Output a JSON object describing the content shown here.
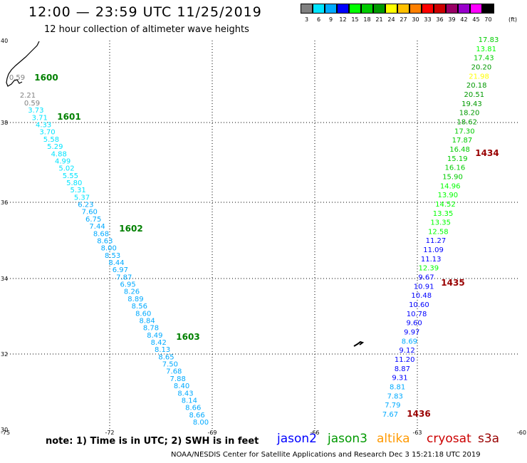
{
  "title": "12:00 — 23:59 UTC 11/25/2019",
  "subtitle": "12 hour collection of altimeter wave heights",
  "legend": {
    "colors": [
      "#808080",
      "#00e4ff",
      "#00aaff",
      "#0000ff",
      "#00ff00",
      "#00cc00",
      "#009900",
      "#ffff00",
      "#ffc000",
      "#ff8000",
      "#ff0000",
      "#cc0000",
      "#990066",
      "#9900cc",
      "#ff00ff",
      "#000000"
    ],
    "labels": [
      "3",
      "6",
      "9",
      "12",
      "15",
      "18",
      "21",
      "24",
      "27",
      "30",
      "33",
      "36",
      "39",
      "42",
      "45",
      "70"
    ],
    "unit": "(ft)"
  },
  "map": {
    "x_ticks": [
      "-75",
      "-72",
      "-69",
      "-66",
      "-63",
      "-60"
    ],
    "y_ticks": [
      "40",
      "38",
      "36",
      "34",
      "32",
      "30"
    ],
    "coast_color": "#000000",
    "grid_color": "#000000"
  },
  "tracks": [
    {
      "id": "west",
      "values": [
        "0.59",
        "2.21",
        "0.59",
        "3.73",
        "3.71",
        "4.33",
        "3.70",
        "5.58",
        "5.29",
        "4.88",
        "4.99",
        "5.02",
        "5.55",
        "5.80",
        "5.31",
        "5.37",
        "6.23",
        "7.60",
        "6.75",
        "7.44",
        "8.68",
        "8.63",
        "8.00",
        "8.53",
        "8.44",
        "6.97",
        "7.87",
        "6.95",
        "8.26",
        "8.89",
        "8.56",
        "8.60",
        "8.84",
        "8.78",
        "8.49",
        "8.42",
        "8.13",
        "8.65",
        "7.50",
        "7.68",
        "7.88",
        "8.40",
        "8.43",
        "8.14",
        "8.66",
        "8.66",
        "8.00"
      ],
      "colors": [
        "#808080",
        "#808080",
        "#808080",
        "#00e4ff",
        "#00e4ff",
        "#00e4ff",
        "#00e4ff",
        "#00e4ff",
        "#00e4ff",
        "#00e4ff",
        "#00e4ff",
        "#00e4ff",
        "#00e4ff",
        "#00e4ff",
        "#00e4ff",
        "#00e4ff",
        "#00aaff",
        "#00aaff",
        "#00aaff",
        "#00aaff",
        "#00aaff",
        "#00aaff",
        "#00aaff",
        "#00aaff",
        "#00aaff",
        "#00aaff",
        "#00aaff",
        "#00aaff",
        "#00aaff",
        "#00aaff",
        "#00aaff",
        "#00aaff",
        "#00aaff",
        "#00aaff",
        "#00aaff",
        "#00aaff",
        "#00aaff",
        "#00aaff",
        "#00aaff",
        "#00aaff",
        "#00aaff",
        "#00aaff",
        "#00aaff",
        "#00aaff",
        "#00aaff",
        "#00aaff",
        "#00aaff"
      ],
      "time_labels": [
        {
          "text": "1600",
          "color": "#008000"
        },
        {
          "text": "1601",
          "color": "#008000"
        },
        {
          "text": "1602",
          "color": "#008000"
        },
        {
          "text": "1603",
          "color": "#008000"
        }
      ]
    },
    {
      "id": "east",
      "values": [
        "17.83",
        "13.81",
        "17.43",
        "20.20",
        "21.98",
        "20.18",
        "20.51",
        "19.43",
        "18.20",
        "18.62",
        "17.30",
        "17.87",
        "16.48",
        "15.19",
        "16.16",
        "15.90",
        "14.96",
        "13.90",
        "14.52",
        "13.35",
        "13.35",
        "12.58",
        "11.27",
        "11.09",
        "11.13",
        "12.39",
        "9.67",
        "10.91",
        "10.48",
        "10.60",
        "10.78",
        "9.60",
        "9.97",
        "8.69",
        "9.12",
        "11.20",
        "8.87",
        "9.31",
        "8.81",
        "7.83",
        "7.79",
        "7.67"
      ],
      "colors": [
        "#00cc00",
        "#00ff00",
        "#00cc00",
        "#009900",
        "#ffff00",
        "#009900",
        "#009900",
        "#009900",
        "#009900",
        "#009900",
        "#00cc00",
        "#00cc00",
        "#00cc00",
        "#00cc00",
        "#00cc00",
        "#00cc00",
        "#00ff00",
        "#00ff00",
        "#00ff00",
        "#00ff00",
        "#00ff00",
        "#00ff00",
        "#0000ff",
        "#0000ff",
        "#0000ff",
        "#00ff00",
        "#0000ff",
        "#0000ff",
        "#0000ff",
        "#0000ff",
        "#0000ff",
        "#0000ff",
        "#0000ff",
        "#00aaff",
        "#0000ff",
        "#0000ff",
        "#0000ff",
        "#0000ff",
        "#00aaff",
        "#00aaff",
        "#00aaff",
        "#00aaff"
      ],
      "time_labels": [
        {
          "text": "1434",
          "color": "#990000"
        },
        {
          "text": "1435",
          "color": "#990000"
        },
        {
          "text": "1436",
          "color": "#990000"
        }
      ]
    }
  ],
  "note": "note: 1) Time is in UTC; 2) SWH is in feet",
  "satellites": [
    {
      "name": "jason2",
      "color": "#0000ff"
    },
    {
      "name": "jason3",
      "color": "#009900"
    },
    {
      "name": "altika",
      "color": "#ff9900"
    },
    {
      "name": "cryosat",
      "color": "#cc0000"
    },
    {
      "name": "s3a",
      "color": "#990000"
    }
  ],
  "credit": "NOAA/NESDIS Center for Satellite Applications and Research   Dec  3 15:21:18 UTC 2019"
}
